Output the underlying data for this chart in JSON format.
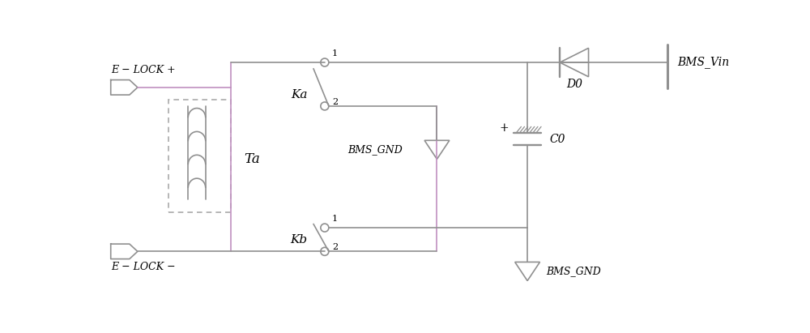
{
  "figsize": [
    10.0,
    4.11
  ],
  "dpi": 100,
  "bg_color": "#ffffff",
  "line_color": "#909090",
  "purple_color": "#c090c0",
  "text_color": "#000000",
  "xlim": [
    0,
    10
  ],
  "ylim": [
    0,
    4.11
  ]
}
